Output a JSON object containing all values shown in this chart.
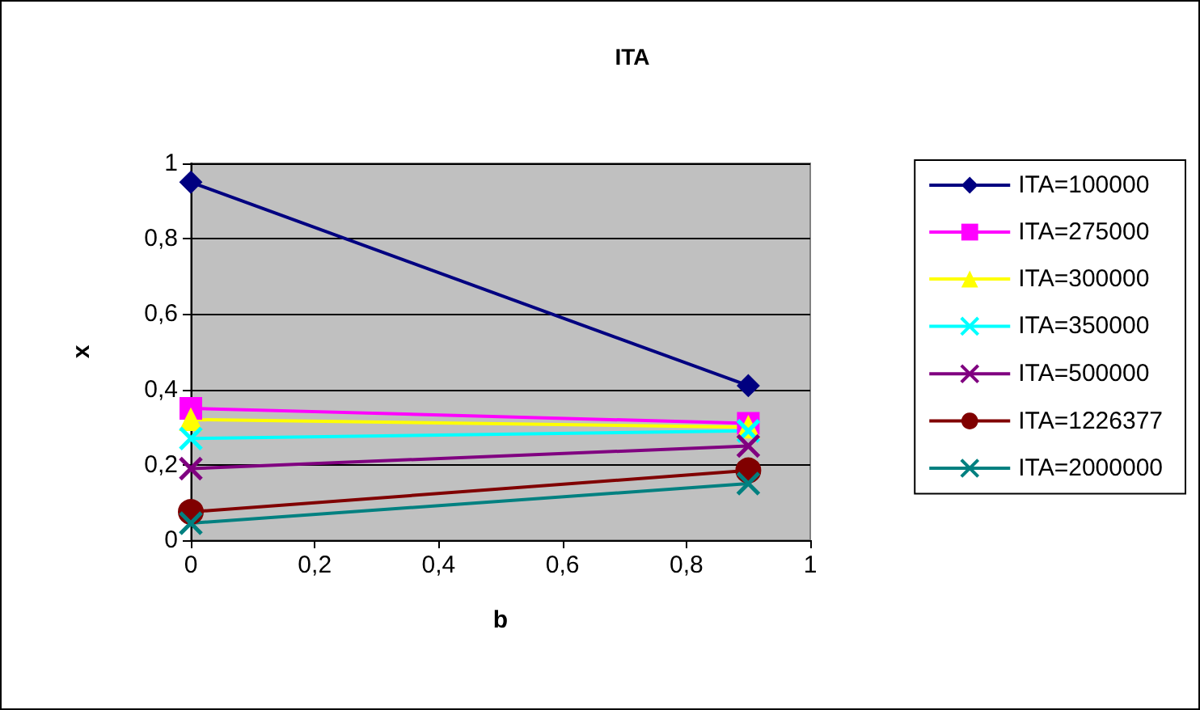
{
  "chart_data": {
    "type": "line",
    "title": "ITA",
    "xlabel": "b",
    "ylabel": "x",
    "x": [
      0,
      0.9
    ],
    "xlim": [
      0,
      1
    ],
    "xticks": [
      0,
      {
        "value": 0.2,
        "label": "0,2"
      },
      {
        "value": 0.4,
        "label": "0,4"
      },
      {
        "value": 0.6,
        "label": "0,6"
      },
      {
        "value": 0.8,
        "label": "0,8"
      },
      1
    ],
    "ylim": [
      0,
      1
    ],
    "yticks": [
      0,
      {
        "value": 0.2,
        "label": "0,2"
      },
      {
        "value": 0.4,
        "label": "0,4"
      },
      {
        "value": 0.6,
        "label": "0,6"
      },
      {
        "value": 0.8,
        "label": "0,8"
      },
      1
    ],
    "grid": "y",
    "legend": "right",
    "line_style": "solid",
    "series": [
      {
        "name": "ITA=100000",
        "color": "#000080",
        "marker": "diamond",
        "values": [
          0.95,
          0.41
        ]
      },
      {
        "name": "ITA=275000",
        "color": "#ff00ff",
        "marker": "square",
        "values": [
          0.35,
          0.31
        ]
      },
      {
        "name": "ITA=300000",
        "color": "#ffff00",
        "marker": "triangle",
        "values": [
          0.32,
          0.3
        ]
      },
      {
        "name": "ITA=350000",
        "color": "#00ffff",
        "marker": "cross",
        "values": [
          0.27,
          0.29
        ]
      },
      {
        "name": "ITA=500000",
        "color": "#800080",
        "marker": "cross",
        "values": [
          0.19,
          0.25
        ]
      },
      {
        "name": "ITA=1226377",
        "color": "#800000",
        "marker": "circle",
        "values": [
          0.075,
          0.185
        ]
      },
      {
        "name": "ITA=2000000",
        "color": "#008080",
        "marker": "cross",
        "values": [
          0.045,
          0.15
        ]
      }
    ]
  }
}
